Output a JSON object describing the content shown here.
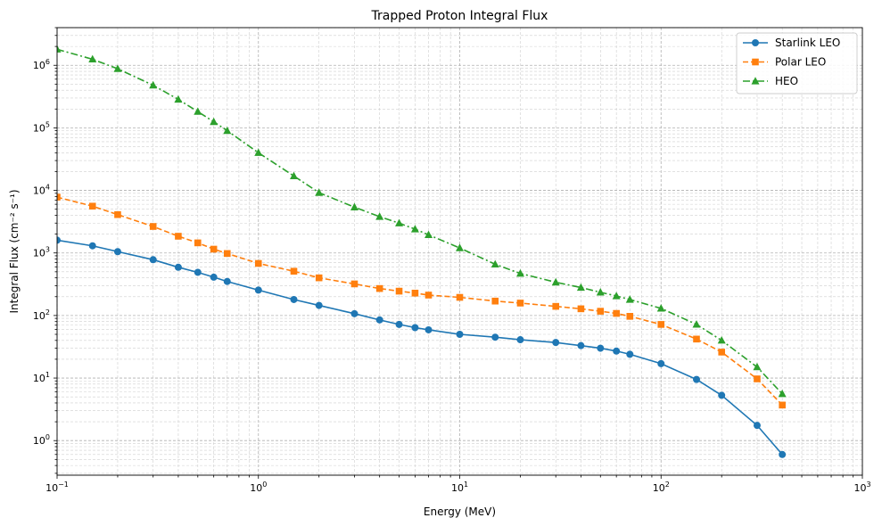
{
  "chart_data": {
    "type": "line",
    "title": "Trapped Proton Integral Flux",
    "xlabel": "Energy (MeV)",
    "ylabel": "Integral Flux (cm⁻² s⁻¹)",
    "xscale": "log",
    "yscale": "log",
    "xlim": [
      0.1,
      1000
    ],
    "ylim": [
      0.28,
      4000000
    ],
    "x_ticks": [
      {
        "value": 0.1,
        "base": "10",
        "exp": "−1"
      },
      {
        "value": 1,
        "base": "10",
        "exp": "0"
      },
      {
        "value": 10,
        "base": "10",
        "exp": "1"
      },
      {
        "value": 100,
        "base": "10",
        "exp": "2"
      },
      {
        "value": 1000,
        "base": "10",
        "exp": "3"
      }
    ],
    "y_ticks": [
      {
        "value": 1,
        "base": "10",
        "exp": "0"
      },
      {
        "value": 10,
        "base": "10",
        "exp": "1"
      },
      {
        "value": 100,
        "base": "10",
        "exp": "2"
      },
      {
        "value": 1000,
        "base": "10",
        "exp": "3"
      },
      {
        "value": 10000,
        "base": "10",
        "exp": "4"
      },
      {
        "value": 100000,
        "base": "10",
        "exp": "5"
      },
      {
        "value": 1000000,
        "base": "10",
        "exp": "6"
      }
    ],
    "grid": "major and minor, dashed",
    "legend_position": "top-right",
    "x": [
      0.1,
      0.15,
      0.2,
      0.3,
      0.4,
      0.5,
      0.6,
      0.7,
      1,
      1.5,
      2,
      3,
      4,
      5,
      6,
      7,
      10,
      15,
      20,
      30,
      40,
      50,
      60,
      70,
      100,
      150,
      200,
      300,
      400
    ],
    "series": [
      {
        "name": "Starlink LEO",
        "color": "#1f77b4",
        "marker": "circle",
        "linestyle": "solid",
        "values": [
          1600,
          1300,
          1050,
          780,
          590,
          490,
          410,
          350,
          255,
          180,
          145,
          107,
          85,
          72,
          64,
          59,
          50,
          45,
          41,
          37,
          33,
          30,
          27,
          24,
          17,
          9.5,
          5.3,
          1.75,
          0.6
        ]
      },
      {
        "name": "Polar LEO",
        "color": "#ff7f0e",
        "marker": "square",
        "linestyle": "dashed",
        "values": [
          7800,
          5600,
          4100,
          2650,
          1850,
          1450,
          1150,
          980,
          680,
          510,
          400,
          320,
          270,
          245,
          228,
          212,
          195,
          170,
          158,
          140,
          128,
          117,
          108,
          97,
          72,
          42,
          26,
          9.7,
          3.7
        ]
      },
      {
        "name": "HEO",
        "color": "#2ca02c",
        "marker": "triangle",
        "linestyle": "dashdot",
        "values": [
          1800000,
          1250000,
          880000,
          480000,
          285000,
          182000,
          125000,
          90000,
          40000,
          17000,
          9200,
          5400,
          3800,
          3000,
          2400,
          1950,
          1200,
          660,
          470,
          340,
          280,
          235,
          205,
          180,
          130,
          72,
          40,
          15,
          5.6
        ]
      }
    ]
  }
}
